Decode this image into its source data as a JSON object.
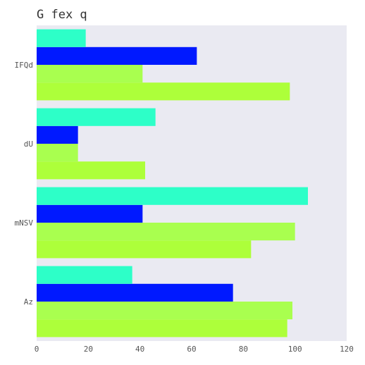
{
  "chart_data": {
    "type": "bar",
    "orientation": "horizontal",
    "title": "G fex q",
    "xlabel": "",
    "ylabel": "",
    "categories": [
      "Az",
      "mNSV",
      "dU",
      "IFQd"
    ],
    "xlim": [
      0,
      120
    ],
    "xticks": [
      0,
      20,
      40,
      60,
      80,
      100,
      120
    ],
    "grid": false,
    "legend": "none",
    "background": "#eaeaf2",
    "series": [
      {
        "color": "#adff3a",
        "values": [
          97,
          83,
          42,
          98
        ]
      },
      {
        "color": "#a9ff4f",
        "values": [
          99,
          100,
          16,
          41
        ]
      },
      {
        "color": "#0019ff",
        "values": [
          76,
          41,
          16,
          62
        ]
      },
      {
        "color": "#2dffc8",
        "values": [
          37,
          105,
          46,
          19
        ]
      }
    ]
  }
}
